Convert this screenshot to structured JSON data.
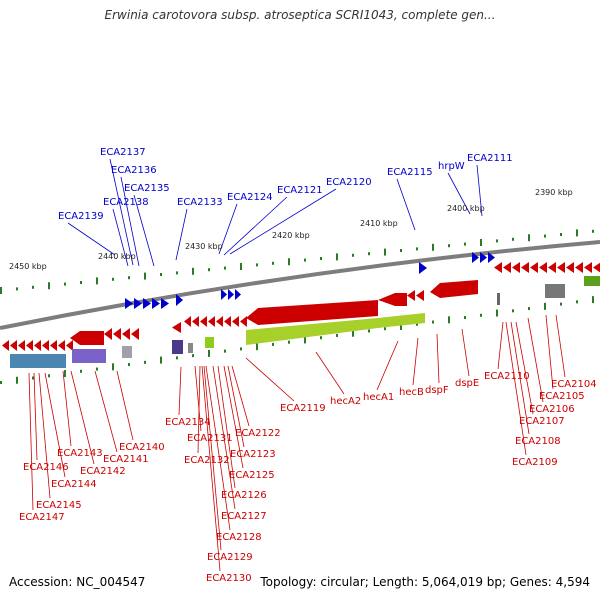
{
  "title": "Erwinia carotovora subsp. atroseptica SCRI1043, complete gen...",
  "accession": "Accession: NC_004547",
  "summary": "Topology: circular; Length: 5,064,019 bp; Genes: 4,594",
  "colors": {
    "forward": "#0000cc",
    "reverse": "#cc0000",
    "backbone": "#777777",
    "tick": "#2a7a2a"
  },
  "scale_labels": [
    "2450 kbp",
    "2440 kbp",
    "2430 kbp",
    "2420 kbp",
    "2410 kbp",
    "2400 kbp",
    "2390 kbp"
  ],
  "forward_genes": [
    "ECA2137",
    "ECA2136",
    "ECA2135",
    "ECA2138",
    "ECA2139",
    "ECA2133",
    "ECA2124",
    "ECA2121",
    "ECA2120",
    "ECA2115",
    "hrpW",
    "ECA2111"
  ],
  "reverse_genes": [
    "ECA2146",
    "ECA2147",
    "ECA2145",
    "ECA2144",
    "ECA2143",
    "ECA2142",
    "ECA2141",
    "ECA2140",
    "ECA2134",
    "ECA2131",
    "ECA2132",
    "ECA2128",
    "ECA2129",
    "ECA2130",
    "ECA2127",
    "ECA2126",
    "ECA2125",
    "ECA2123",
    "ECA2122",
    "ECA2119",
    "hecA2",
    "hecA1",
    "hecB",
    "dspF",
    "dspE",
    "ECA2110",
    "ECA2109",
    "ECA2108",
    "ECA2107",
    "ECA2106",
    "ECA2105",
    "ECA2104"
  ]
}
